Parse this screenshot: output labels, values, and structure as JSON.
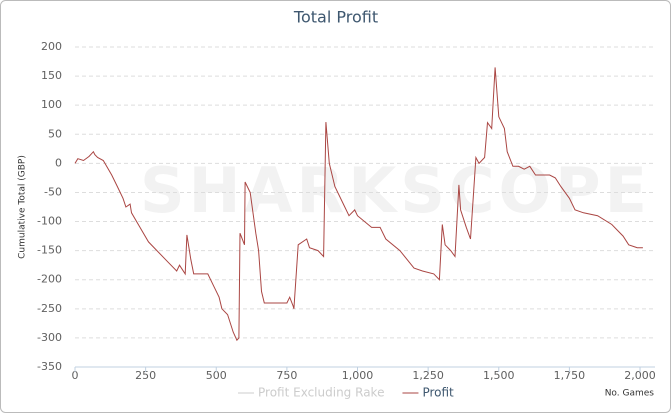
{
  "chart_data": {
    "type": "line",
    "title": "Total Profit",
    "ylabel": "Cumulative Total (GBP)",
    "xlabel": "No. Games",
    "watermark": "SHARKSCOPE",
    "xlim": [
      0,
      2053
    ],
    "ylim": [
      -350,
      200
    ],
    "xticks": [
      0,
      250,
      500,
      750,
      {
        "value": 1000,
        "label": "1,000"
      },
      {
        "value": 1250,
        "label": "1,250"
      },
      {
        "value": 1500,
        "label": "1,500"
      },
      {
        "value": 1750,
        "label": "1,750"
      },
      {
        "value": 2000,
        "label": "2,000"
      }
    ],
    "yticks": [
      -350,
      -300,
      -250,
      -200,
      -150,
      -100,
      -50,
      0,
      50,
      100,
      150,
      200
    ],
    "grid": true,
    "x": [
      0,
      10,
      30,
      50,
      65,
      70,
      80,
      100,
      130,
      150,
      170,
      180,
      195,
      200,
      230,
      260,
      290,
      330,
      360,
      370,
      390,
      396,
      410,
      420,
      470,
      480,
      510,
      520,
      540,
      560,
      573,
      580,
      584,
      600,
      602,
      620,
      640,
      650,
      660,
      670,
      700,
      750,
      760,
      772,
      775,
      790,
      820,
      830,
      860,
      880,
      888,
      900,
      920,
      950,
      970,
      990,
      1000,
      1050,
      1080,
      1100,
      1150,
      1200,
      1230,
      1270,
      1290,
      1300,
      1310,
      1330,
      1345,
      1359,
      1365,
      1385,
      1400,
      1419,
      1430,
      1450,
      1460,
      1475,
      1487,
      1500,
      1520,
      1530,
      1550,
      1570,
      1590,
      1610,
      1630,
      1680,
      1700,
      1720,
      1750,
      1770,
      1800,
      1850,
      1900,
      1940,
      1960,
      1990,
      2010
    ],
    "series": [
      {
        "name": "Profit Excluding Rake",
        "color": "#cccccc",
        "hidden": true
      },
      {
        "name": "Profit",
        "color": "#aa4643",
        "values": [
          0,
          8,
          5,
          12,
          20,
          15,
          10,
          5,
          -20,
          -40,
          -60,
          -75,
          -70,
          -85,
          -110,
          -135,
          -150,
          -170,
          -185,
          -175,
          -190,
          -123,
          -165,
          -190,
          -190,
          -200,
          -230,
          -250,
          -260,
          -290,
          -304,
          -300,
          -120,
          -140,
          -32,
          -50,
          -120,
          -150,
          -220,
          -240,
          -240,
          -240,
          -230,
          -245,
          -250,
          -140,
          -130,
          -145,
          -150,
          -160,
          71,
          0,
          -40,
          -70,
          -90,
          -80,
          -90,
          -110,
          -110,
          -130,
          -150,
          -180,
          -185,
          -190,
          -200,
          -105,
          -140,
          -150,
          -160,
          -37,
          -80,
          -110,
          -130,
          10,
          0,
          10,
          70,
          60,
          165,
          80,
          60,
          20,
          -5,
          -5,
          -10,
          -5,
          -20,
          -20,
          -25,
          -40,
          -60,
          -80,
          -85,
          -90,
          -105,
          -125,
          -140,
          -145,
          -145
        ]
      }
    ]
  }
}
